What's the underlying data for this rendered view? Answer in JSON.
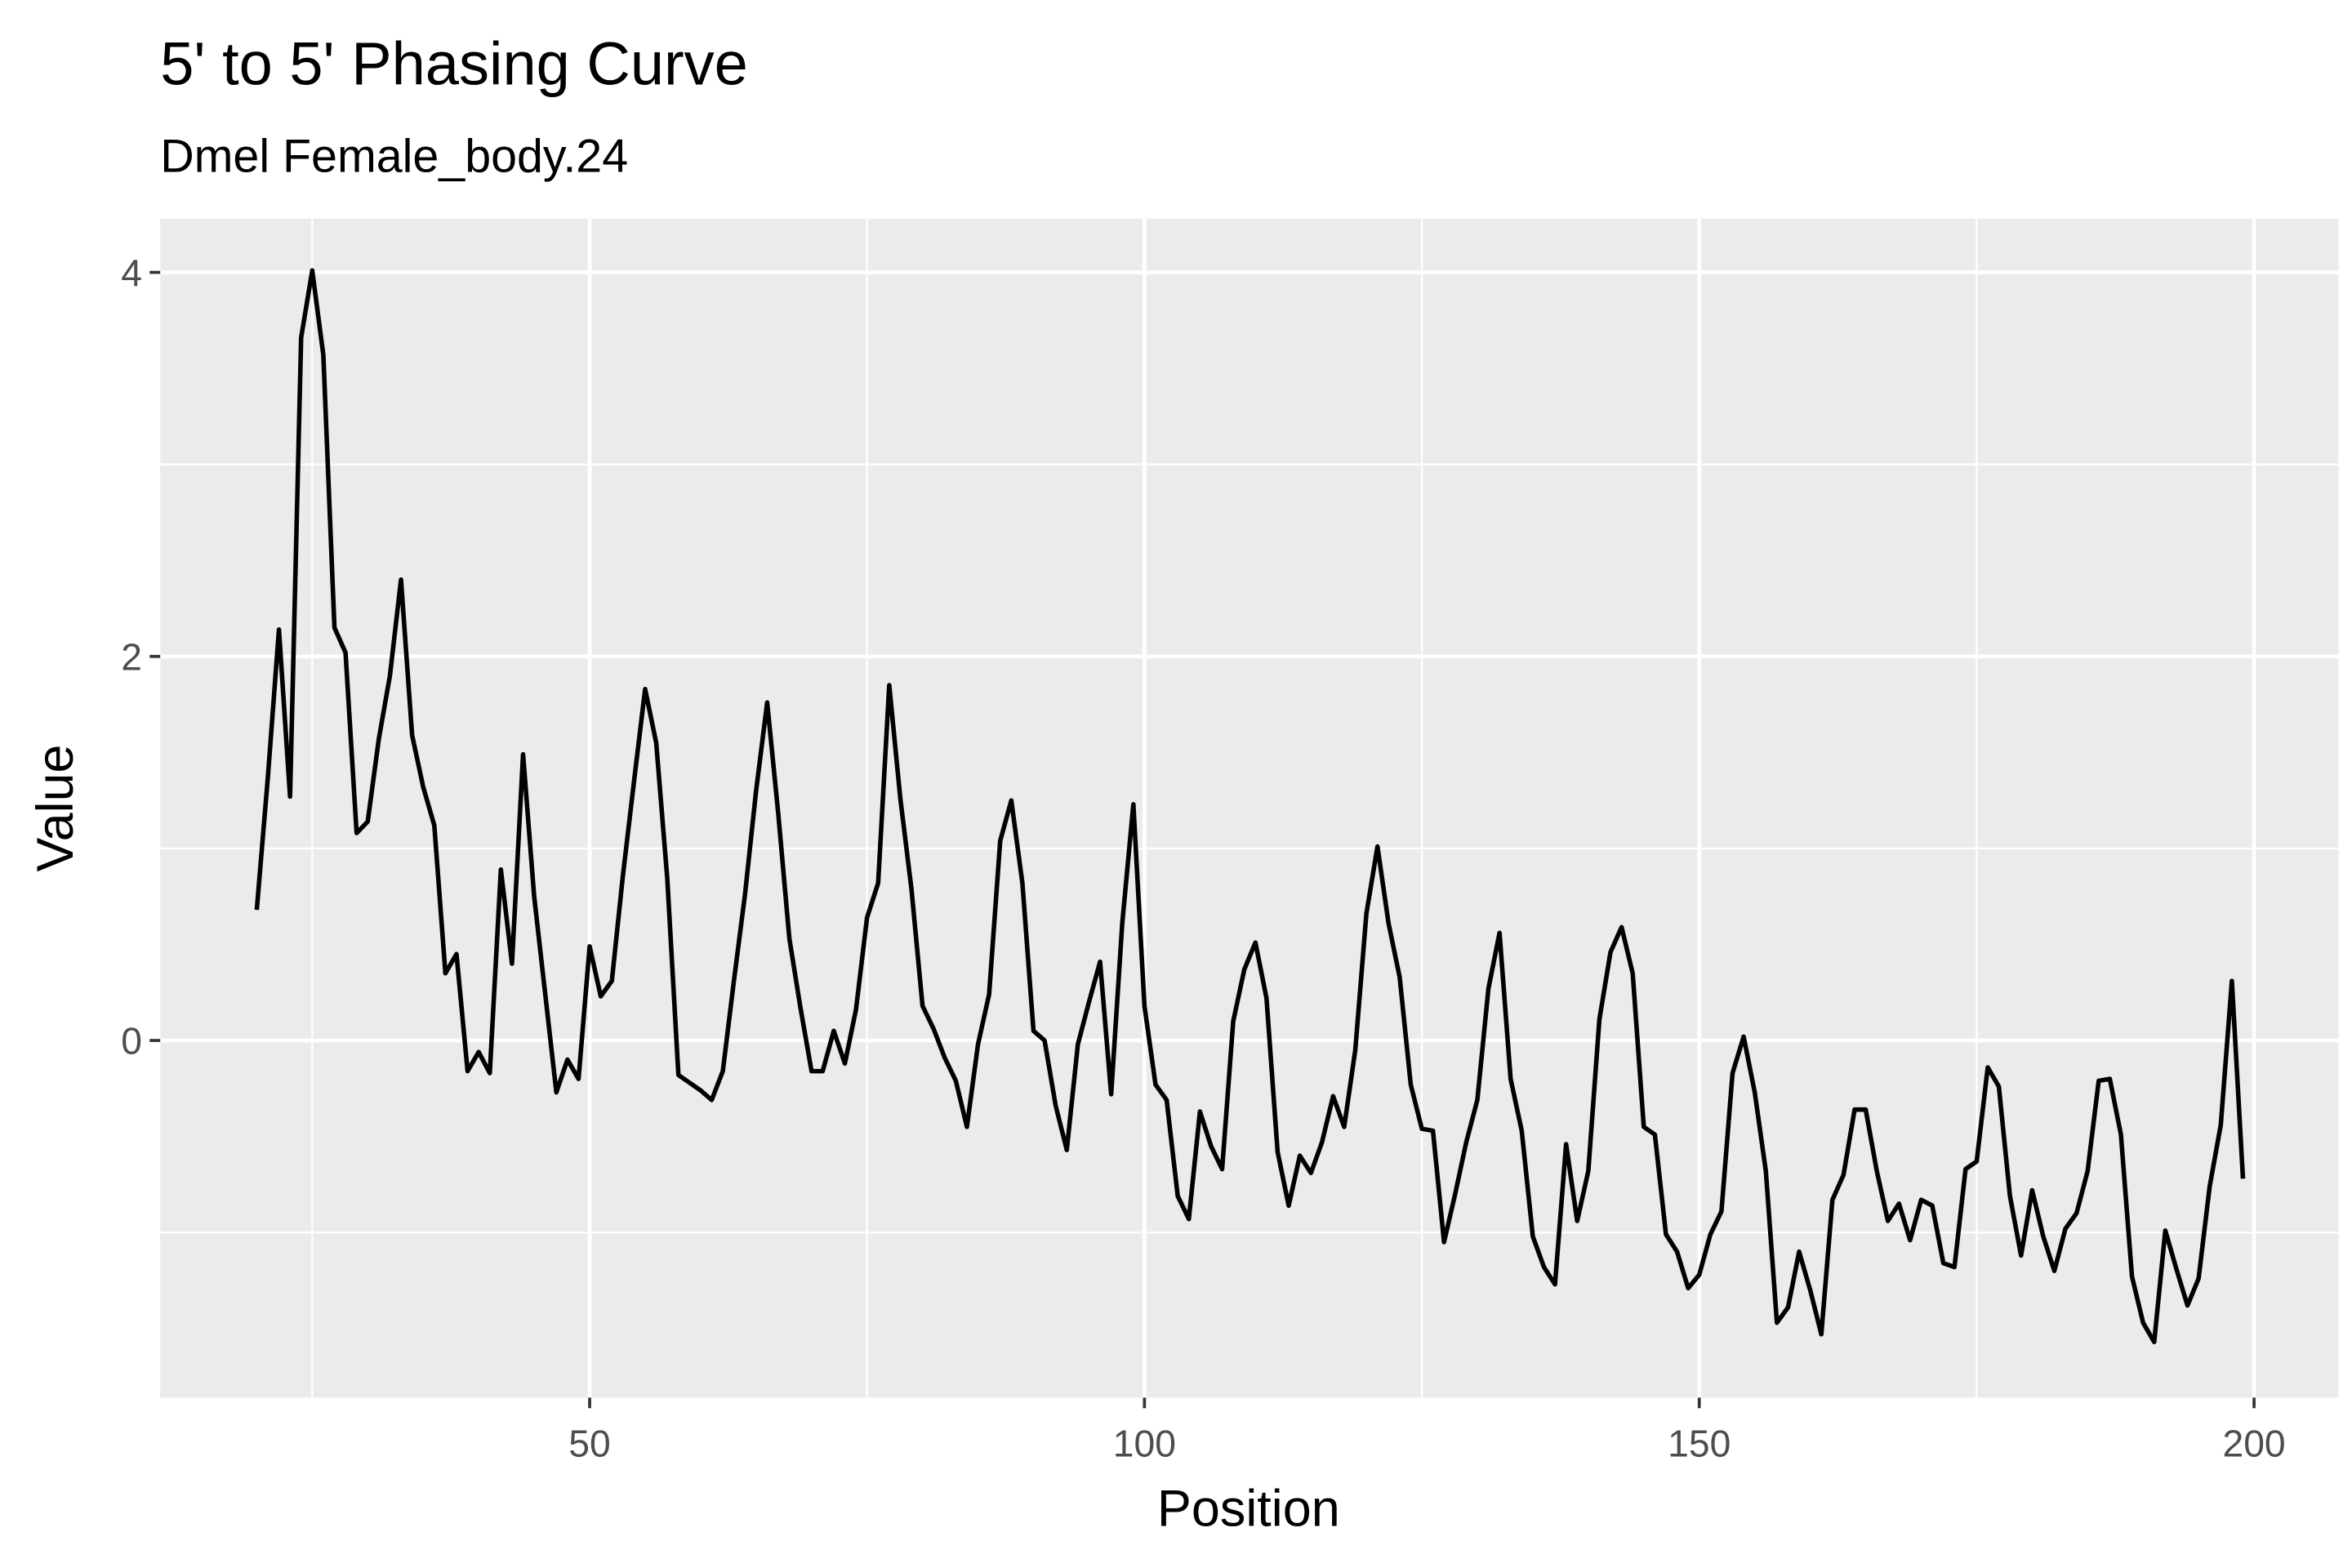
{
  "chart_data": {
    "type": "line",
    "title": "5' to 5' Phasing Curve",
    "subtitle": "Dmel Female_body.24",
    "x_label": "Position",
    "y_label": "Value",
    "x": [
      20,
      21,
      22,
      23,
      24,
      25,
      26,
      27,
      28,
      29,
      30,
      31,
      32,
      33,
      34,
      35,
      36,
      37,
      38,
      39,
      40,
      41,
      42,
      43,
      44,
      45,
      46,
      47,
      48,
      49,
      50,
      51,
      52,
      53,
      54,
      55,
      56,
      57,
      58,
      59,
      60,
      61,
      62,
      63,
      64,
      65,
      66,
      67,
      68,
      69,
      70,
      71,
      72,
      73,
      74,
      75,
      76,
      77,
      78,
      79,
      80,
      81,
      82,
      83,
      84,
      85,
      86,
      87,
      88,
      89,
      90,
      91,
      92,
      93,
      94,
      95,
      96,
      97,
      98,
      99,
      100,
      101,
      102,
      103,
      104,
      105,
      106,
      107,
      108,
      109,
      110,
      111,
      112,
      113,
      114,
      115,
      116,
      117,
      118,
      119,
      120,
      121,
      122,
      123,
      124,
      125,
      126,
      127,
      128,
      129,
      130,
      131,
      132,
      133,
      134,
      135,
      136,
      137,
      138,
      139,
      140,
      141,
      142,
      143,
      144,
      145,
      146,
      147,
      148,
      149,
      150,
      151,
      152,
      153,
      154,
      155,
      156,
      157,
      158,
      159,
      160,
      161,
      162,
      163,
      164,
      165,
      166,
      167,
      168,
      169,
      170,
      171,
      172,
      173,
      174,
      175,
      176,
      177,
      178,
      179,
      180,
      181,
      182,
      183,
      184,
      185,
      186,
      187,
      188,
      189,
      190,
      191,
      192,
      193,
      194,
      195,
      196,
      197,
      198,
      199
    ],
    "series": [
      {
        "color": "#000000",
        "values": [
          0.68,
          1.37,
          2.14,
          1.27,
          3.66,
          4.01,
          3.57,
          2.15,
          2.02,
          1.08,
          1.14,
          1.57,
          1.9,
          2.4,
          1.59,
          1.32,
          1.12,
          0.35,
          0.45,
          -0.16,
          -0.06,
          -0.17,
          0.89,
          0.4,
          1.49,
          0.75,
          0.24,
          -0.27,
          -0.1,
          -0.2,
          0.49,
          0.23,
          0.31,
          0.86,
          1.35,
          1.83,
          1.55,
          0.84,
          -0.18,
          -0.22,
          -0.26,
          -0.31,
          -0.16,
          0.31,
          0.76,
          1.3,
          1.76,
          1.18,
          0.53,
          0.17,
          -0.16,
          -0.16,
          0.05,
          -0.12,
          0.16,
          0.64,
          0.82,
          1.85,
          1.26,
          0.79,
          0.18,
          0.06,
          -0.09,
          -0.21,
          -0.45,
          -0.02,
          0.24,
          1.04,
          1.25,
          0.82,
          0.05,
          0.0,
          -0.34,
          -0.57,
          -0.02,
          0.2,
          0.41,
          -0.28,
          0.61,
          1.23,
          0.18,
          -0.23,
          -0.31,
          -0.81,
          -0.93,
          -0.37,
          -0.55,
          -0.67,
          0.1,
          0.37,
          0.51,
          0.22,
          -0.58,
          -0.86,
          -0.6,
          -0.69,
          -0.53,
          -0.29,
          -0.45,
          -0.05,
          0.66,
          1.01,
          0.61,
          0.33,
          -0.23,
          -0.46,
          -0.47,
          -1.05,
          -0.8,
          -0.53,
          -0.31,
          0.27,
          0.56,
          -0.2,
          -0.47,
          -1.02,
          -1.18,
          -1.27,
          -0.54,
          -0.94,
          -0.68,
          0.11,
          0.46,
          0.59,
          0.35,
          -0.45,
          -0.49,
          -1.01,
          -1.1,
          -1.29,
          -1.22,
          -1.01,
          -0.89,
          -0.17,
          0.02,
          -0.27,
          -0.68,
          -1.47,
          -1.39,
          -1.1,
          -1.3,
          -1.53,
          -0.83,
          -0.7,
          -0.36,
          -0.36,
          -0.68,
          -0.94,
          -0.85,
          -1.04,
          -0.83,
          -0.86,
          -1.16,
          -1.18,
          -0.67,
          -0.63,
          -0.14,
          -0.24,
          -0.81,
          -1.12,
          -0.78,
          -1.02,
          -1.2,
          -0.98,
          -0.9,
          -0.68,
          -0.21,
          -0.2,
          -0.49,
          -1.23,
          -1.47,
          -1.57,
          -0.99,
          -1.19,
          -1.38,
          -1.24,
          -0.76,
          -0.44,
          0.31,
          -0.72
        ]
      }
    ],
    "xlim": [
      11.3,
      207.6
    ],
    "ylim": [
      -1.86,
      4.28
    ],
    "xticks": [
      50,
      100,
      150,
      200
    ],
    "yticks": [
      0,
      2,
      4
    ],
    "grid": true
  }
}
